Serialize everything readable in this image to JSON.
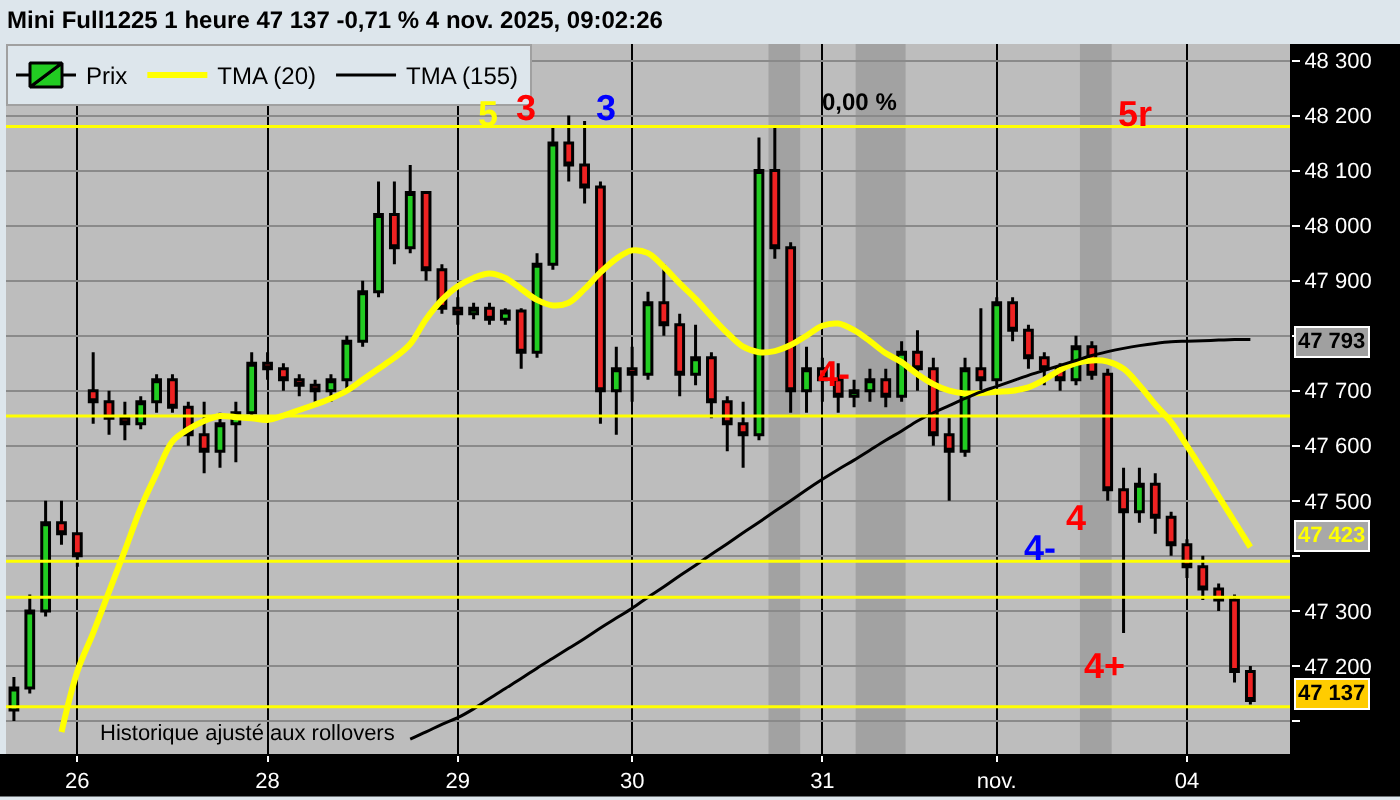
{
  "chart_data": {
    "type": "candlestick",
    "title": "Mini Full1225 1 heure 47 137 -0,71 % 4 nov. 2025, 09:02:26",
    "categories": [
      null,
      null,
      null,
      null,
      "26",
      null,
      null,
      null,
      null,
      null,
      null,
      null,
      null,
      null,
      null,
      null,
      "28",
      null,
      null,
      null,
      null,
      null,
      null,
      null,
      null,
      null,
      null,
      null,
      "29",
      null,
      null,
      null,
      null,
      null,
      null,
      null,
      null,
      null,
      null,
      "30",
      null,
      null,
      null,
      null,
      null,
      null,
      null,
      null,
      null,
      null,
      null,
      "31",
      null,
      null,
      null,
      null,
      null,
      null,
      null,
      null,
      null,
      null,
      "nov.",
      null,
      null,
      null,
      null,
      null,
      null,
      null,
      null,
      null,
      null,
      null,
      "04",
      null,
      null,
      null,
      null
    ],
    "ylim": [
      47040,
      48330
    ],
    "yticks": [
      {
        "value": 47100,
        "label": null
      },
      {
        "value": 47200,
        "label": "47 200"
      },
      {
        "value": 47300,
        "label": "47 300"
      },
      {
        "value": 47400,
        "label": null
      },
      {
        "value": 47500,
        "label": "47 500"
      },
      {
        "value": 47600,
        "label": "47 600"
      },
      {
        "value": 47700,
        "label": "47 700"
      },
      {
        "value": 47800,
        "label": null
      },
      {
        "value": 47900,
        "label": "47 900"
      },
      {
        "value": 48000,
        "label": "48 000"
      },
      {
        "value": 48100,
        "label": "48 100"
      },
      {
        "value": 48200,
        "label": "48 200"
      },
      {
        "value": 48300,
        "label": "48 300"
      }
    ],
    "grid": true,
    "legend": "top left",
    "series": [
      {
        "name": "Prix",
        "colors": [
          "#22cc22",
          "#22cc22",
          "#22cc22",
          "#ee2222",
          "#ee2222",
          "#ee2222",
          "#ee2222",
          "#ee2222",
          "#22cc22",
          "#22cc22",
          "#ee2222",
          "#ee2222",
          "#ee2222",
          "#22cc22",
          "#22cc22",
          "#22cc22",
          "#ee2222",
          "#ee2222",
          "#ee2222",
          "#ee2222",
          "#22cc22",
          "#22cc22",
          "#22cc22",
          "#22cc22",
          "#ee2222",
          "#22cc22",
          "#ee2222",
          "#ee2222",
          "#ee2222",
          "#22cc22",
          "#ee2222",
          "#22cc22",
          "#ee2222",
          "#22cc22",
          "#22cc22",
          "#ee2222",
          "#ee2222",
          "#ee2222",
          "#22cc22",
          "#ee2222",
          "#22cc22",
          "#ee2222",
          "#ee2222",
          "#22cc22",
          "#ee2222",
          "#ee2222",
          "#ee2222",
          "#22cc22",
          "#ee2222",
          "#ee2222",
          "#22cc22",
          "#ee2222",
          "#ee2222",
          "#22cc22",
          "#22cc22",
          "#ee2222",
          "#22cc22",
          "#ee2222",
          "#ee2222",
          "#ee2222",
          "#22cc22",
          "#ee2222",
          "#22cc22",
          "#ee2222",
          "#ee2222",
          "#ee2222",
          "#ee2222",
          "#22cc22",
          "#ee2222",
          "#ee2222",
          "#ee2222",
          "#22cc22",
          "#ee2222",
          "#ee2222",
          "#ee2222",
          "#ee2222",
          "#ee2222",
          "#ee2222",
          "#ee2222"
        ],
        "ohlc": [
          [
            47120,
            47180,
            47100,
            47160
          ],
          [
            47160,
            47330,
            47150,
            47300
          ],
          [
            47300,
            47500,
            47290,
            47460
          ],
          [
            47460,
            47500,
            47420,
            47440
          ],
          [
            47440,
            47440,
            47380,
            47400
          ],
          [
            47700,
            47770,
            47640,
            47680
          ],
          [
            47680,
            47700,
            47620,
            47650
          ],
          [
            47650,
            47680,
            47610,
            47640
          ],
          [
            47640,
            47690,
            47630,
            47680
          ],
          [
            47680,
            47730,
            47660,
            47720
          ],
          [
            47720,
            47730,
            47660,
            47670
          ],
          [
            47670,
            47680,
            47600,
            47620
          ],
          [
            47620,
            47680,
            47550,
            47590
          ],
          [
            47590,
            47660,
            47560,
            47640
          ],
          [
            47640,
            47680,
            47570,
            47660
          ],
          [
            47660,
            47770,
            47650,
            47750
          ],
          [
            47750,
            47770,
            47720,
            47740
          ],
          [
            47740,
            47750,
            47700,
            47720
          ],
          [
            47720,
            47730,
            47690,
            47710
          ],
          [
            47710,
            47720,
            47680,
            47700
          ],
          [
            47700,
            47730,
            47680,
            47720
          ],
          [
            47720,
            47800,
            47700,
            47790
          ],
          [
            47790,
            47900,
            47780,
            47880
          ],
          [
            47880,
            48080,
            47870,
            48020
          ],
          [
            48020,
            48080,
            47930,
            47960
          ],
          [
            47960,
            48110,
            47950,
            48060
          ],
          [
            48060,
            48060,
            47900,
            47920
          ],
          [
            47920,
            47930,
            47840,
            47850
          ],
          [
            47850,
            47870,
            47820,
            47840
          ],
          [
            47840,
            47860,
            47830,
            47850
          ],
          [
            47850,
            47860,
            47820,
            47830
          ],
          [
            47830,
            47850,
            47820,
            47845
          ],
          [
            47845,
            47850,
            47740,
            47770
          ],
          [
            47770,
            47950,
            47760,
            47930
          ],
          [
            47930,
            48180,
            47920,
            48150
          ],
          [
            48150,
            48200,
            48080,
            48110
          ],
          [
            48110,
            48190,
            48040,
            48070
          ],
          [
            48070,
            48080,
            47640,
            47700
          ],
          [
            47700,
            47780,
            47620,
            47740
          ],
          [
            47740,
            47780,
            47680,
            47730
          ],
          [
            47730,
            47880,
            47720,
            47860
          ],
          [
            47860,
            47930,
            47800,
            47820
          ],
          [
            47820,
            47840,
            47690,
            47730
          ],
          [
            47730,
            47820,
            47710,
            47760
          ],
          [
            47760,
            47770,
            47650,
            47680
          ],
          [
            47680,
            47690,
            47590,
            47640
          ],
          [
            47640,
            47680,
            47560,
            47620
          ],
          [
            47620,
            48160,
            47610,
            48100
          ],
          [
            48100,
            48180,
            47940,
            47960
          ],
          [
            47960,
            47970,
            47660,
            47700
          ],
          [
            47700,
            47780,
            47660,
            47740
          ],
          [
            47740,
            47760,
            47680,
            47720
          ],
          [
            47720,
            47750,
            47660,
            47690
          ],
          [
            47690,
            47720,
            47670,
            47700
          ],
          [
            47700,
            47740,
            47680,
            47720
          ],
          [
            47720,
            47740,
            47670,
            47690
          ],
          [
            47690,
            47790,
            47680,
            47770
          ],
          [
            47770,
            47810,
            47700,
            47740
          ],
          [
            47740,
            47760,
            47600,
            47620
          ],
          [
            47620,
            47650,
            47500,
            47590
          ],
          [
            47590,
            47760,
            47580,
            47740
          ],
          [
            47740,
            47850,
            47700,
            47720
          ],
          [
            47720,
            47870,
            47710,
            47860
          ],
          [
            47860,
            47870,
            47790,
            47810
          ],
          [
            47810,
            47820,
            47740,
            47760
          ],
          [
            47760,
            47770,
            47710,
            47740
          ],
          [
            47740,
            47750,
            47700,
            47720
          ],
          [
            47720,
            47800,
            47710,
            47780
          ],
          [
            47780,
            47790,
            47720,
            47730
          ],
          [
            47730,
            47740,
            47500,
            47520
          ],
          [
            47520,
            47560,
            47260,
            47480
          ],
          [
            47480,
            47560,
            47460,
            47530
          ],
          [
            47530,
            47550,
            47440,
            47470
          ],
          [
            47470,
            47480,
            47400,
            47420
          ],
          [
            47420,
            47430,
            47360,
            47380
          ],
          [
            47380,
            47400,
            47320,
            47340
          ],
          [
            47340,
            47350,
            47300,
            47320
          ],
          [
            47320,
            47330,
            47170,
            47190
          ],
          [
            47190,
            47200,
            47130,
            47137
          ]
        ]
      },
      {
        "name": "TMA (20)",
        "type": "line",
        "color": "#ffff00",
        "values": [
          null,
          null,
          null,
          47080,
          47190,
          47260,
          47335,
          47410,
          47487,
          47550,
          47608,
          47630,
          47645,
          47654,
          47652,
          47650,
          47647,
          47655,
          47665,
          47675,
          47686,
          47700,
          47720,
          47740,
          47760,
          47785,
          47830,
          47865,
          47890,
          47905,
          47913,
          47905,
          47885,
          47865,
          47855,
          47860,
          47885,
          47915,
          47940,
          47955,
          47950,
          47925,
          47895,
          47867,
          47835,
          47805,
          47780,
          47770,
          47772,
          47783,
          47800,
          47818,
          47822,
          47810,
          47790,
          47768,
          47752,
          47730,
          47712,
          47700,
          47695,
          47696,
          47698,
          47700,
          47706,
          47720,
          47738,
          47750,
          47755,
          47753,
          47740,
          47710,
          47675,
          47643,
          47600,
          47555,
          47508,
          47462,
          47416
        ]
      },
      {
        "name": "TMA (155)",
        "type": "line",
        "color": "#000000",
        "values": [
          null,
          null,
          null,
          null,
          null,
          null,
          null,
          null,
          null,
          null,
          null,
          null,
          null,
          null,
          null,
          null,
          null,
          null,
          null,
          null,
          null,
          null,
          null,
          null,
          null,
          47067,
          47080,
          47094,
          47106,
          47122,
          47141,
          47159,
          47177,
          47196,
          47214,
          47232,
          47250,
          47269,
          47287,
          47305,
          47325,
          47344,
          47364,
          47383,
          47403,
          47422,
          47442,
          47461,
          47481,
          47500,
          47520,
          47539,
          47557,
          47574,
          47592,
          47610,
          47627,
          47645,
          47660,
          47673,
          47686,
          47698,
          47708,
          47718,
          47728,
          47737,
          47746,
          47755,
          47764,
          47771,
          47777,
          47782,
          47786,
          47789,
          47790,
          47791,
          47792,
          47793,
          47793
        ]
      }
    ],
    "ref_lines": [
      {
        "axis": "y",
        "value": 48180,
        "color": "#ffff00"
      },
      {
        "axis": "y",
        "value": 47654,
        "color": "#ffff00"
      },
      {
        "axis": "y",
        "value": 47390,
        "color": "#ffff00"
      },
      {
        "axis": "y",
        "value": 47325,
        "color": "#ffff00"
      },
      {
        "axis": "y",
        "value": 47126,
        "color": "#ffff00"
      }
    ],
    "annotations": [
      "5",
      "3",
      "3",
      "0,00 %",
      "5r",
      "4-",
      "4",
      "4-",
      "4+",
      "47 793",
      "47 423",
      "47 137",
      "Historique ajusté aux rollovers"
    ]
  }
}
